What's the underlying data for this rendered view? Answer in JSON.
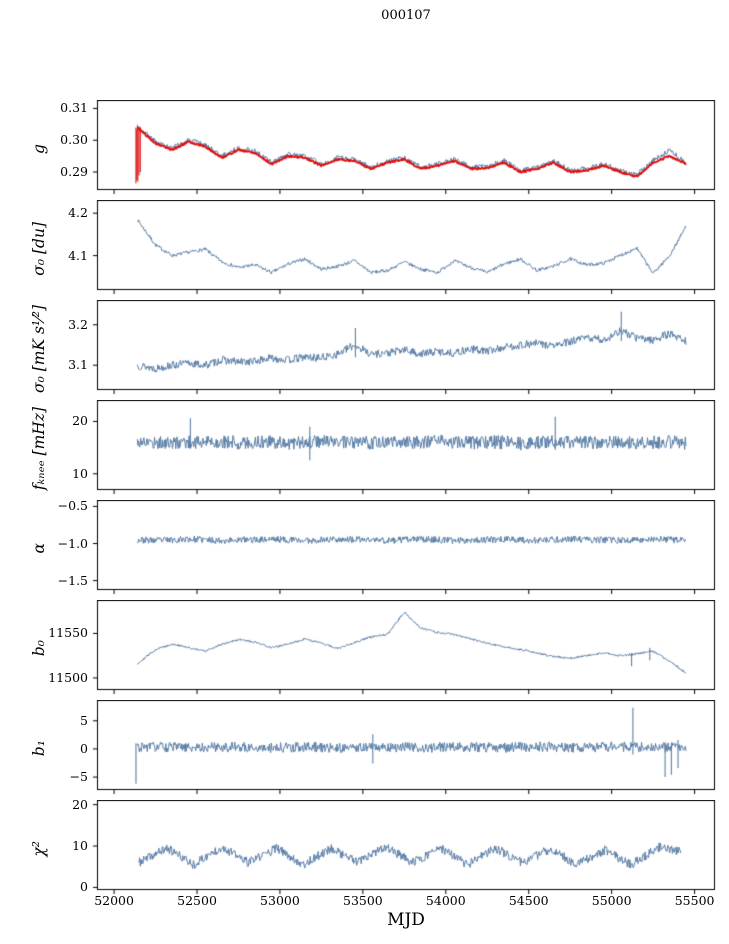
{
  "chart_data": {
    "type": "line",
    "title": "000107",
    "xlabel": "MJD",
    "x_range": [
      51900,
      55620
    ],
    "x_ticks": [
      52000,
      52500,
      53000,
      53500,
      54000,
      54500,
      55000,
      55500
    ],
    "x_tick_labels": [
      "52000",
      "52500",
      "53000",
      "53500",
      "54000",
      "54500",
      "55000",
      "55500"
    ],
    "x_grid": [
      52140,
      52250,
      52350,
      52450,
      52550,
      52650,
      52750,
      52850,
      52950,
      53050,
      53150,
      53250,
      53350,
      53450,
      53550,
      53650,
      53750,
      53850,
      53950,
      54050,
      54150,
      54250,
      54350,
      54450,
      54550,
      54650,
      54750,
      54850,
      54950,
      55050,
      55150,
      55250,
      55350,
      55450
    ],
    "colors": {
      "data_line": "#5b7fa8",
      "fit_line": "#dd1111",
      "axis": "#000000"
    },
    "panels": [
      {
        "id": "g",
        "ylabel": "g",
        "ylim": [
          0.2845,
          0.3125
        ],
        "yticks": [
          0.29,
          0.3,
          0.31
        ],
        "ytick_labels": [
          "0.29",
          "0.30",
          "0.31"
        ],
        "series": [
          {
            "name": "gain-measured",
            "color": "#5b7fa8",
            "lw": 1,
            "noise": 0.0008,
            "seed": 3,
            "y": [
              0.3045,
              0.2995,
              0.2975,
              0.3,
              0.2985,
              0.295,
              0.2975,
              0.2965,
              0.293,
              0.2955,
              0.295,
              0.2925,
              0.2945,
              0.294,
              0.2915,
              0.2935,
              0.2945,
              0.2915,
              0.2925,
              0.294,
              0.2915,
              0.2918,
              0.2935,
              0.2905,
              0.2915,
              0.2935,
              0.2905,
              0.291,
              0.2925,
              0.2905,
              0.289,
              0.2935,
              0.297,
              0.293
            ]
          },
          {
            "name": "gain-model-fit",
            "color": "#dd1111",
            "lw": 1.9,
            "noise": 0.0003,
            "seed": 5,
            "y": [
              0.304,
              0.299,
              0.297,
              0.2995,
              0.298,
              0.2945,
              0.297,
              0.296,
              0.2925,
              0.295,
              0.2945,
              0.292,
              0.294,
              0.2935,
              0.291,
              0.293,
              0.294,
              0.291,
              0.292,
              0.2935,
              0.291,
              0.2913,
              0.293,
              0.29,
              0.291,
              0.293,
              0.29,
              0.2905,
              0.292,
              0.29,
              0.2885,
              0.293,
              0.295,
              0.2925
            ]
          }
        ],
        "spikes": [
          {
            "color": "#dd1111",
            "x": 52132,
            "y0": 0.2865,
            "y1": 0.304
          },
          {
            "color": "#dd1111",
            "x": 52137,
            "y0": 0.2875,
            "y1": 0.3035
          },
          {
            "color": "#dd1111",
            "x": 52143,
            "y0": 0.287,
            "y1": 0.3045
          },
          {
            "color": "#dd1111",
            "x": 52150,
            "y0": 0.289,
            "y1": 0.303
          },
          {
            "color": "#dd1111",
            "x": 52158,
            "y0": 0.29,
            "y1": 0.304
          }
        ]
      },
      {
        "id": "sigma0-du",
        "ylabel": "σ₀ [du]",
        "ylim": [
          4.02,
          4.23
        ],
        "yticks": [
          4.1,
          4.2
        ],
        "ytick_labels": [
          "4.1",
          "4.2"
        ],
        "series": [
          {
            "name": "sigma0-du",
            "color": "#5b7fa8",
            "lw": 1,
            "noise": 0.004,
            "seed": 7,
            "y": [
              4.185,
              4.125,
              4.1,
              4.108,
              4.115,
              4.085,
              4.072,
              4.078,
              4.06,
              4.08,
              4.092,
              4.068,
              4.075,
              4.088,
              4.06,
              4.065,
              4.085,
              4.068,
              4.06,
              4.088,
              4.072,
              4.06,
              4.08,
              4.092,
              4.065,
              4.075,
              4.092,
              4.078,
              4.082,
              4.1,
              4.118,
              4.058,
              4.1,
              4.17
            ]
          }
        ],
        "spikes": []
      },
      {
        "id": "sigma0-mk",
        "ylabel": "σ₀ [mK s¹⁄²]",
        "ylim": [
          3.04,
          3.26
        ],
        "yticks": [
          3.1,
          3.2
        ],
        "ytick_labels": [
          "3.1",
          "3.2"
        ],
        "series": [
          {
            "name": "sigma0-mk",
            "color": "#5b7fa8",
            "lw": 1,
            "noise": 0.01,
            "seed": 13,
            "y": [
              3.1,
              3.092,
              3.1,
              3.105,
              3.1,
              3.113,
              3.108,
              3.11,
              3.118,
              3.113,
              3.12,
              3.118,
              3.128,
              3.15,
              3.128,
              3.13,
              3.138,
              3.128,
              3.134,
              3.13,
              3.14,
              3.135,
              3.144,
              3.15,
              3.154,
              3.148,
              3.158,
              3.168,
              3.162,
              3.185,
              3.168,
              3.163,
              3.178,
              3.16
            ]
          }
        ],
        "spikes": [
          {
            "color": "#5b7fa8",
            "x": 53455,
            "y0": 3.12,
            "y1": 3.192
          },
          {
            "color": "#5b7fa8",
            "x": 55058,
            "y0": 3.16,
            "y1": 3.232
          }
        ]
      },
      {
        "id": "fknee",
        "ylabel": "fₖₙₑₑ [mHz]",
        "ylim": [
          7,
          24
        ],
        "yticks": [
          10,
          20
        ],
        "ytick_labels": [
          "10",
          "20"
        ],
        "series": [
          {
            "name": "fknee",
            "color": "#5b7fa8",
            "lw": 1,
            "noise": 1.3,
            "seed": 17,
            "y": [
              16.2,
              16.0,
              15.8,
              16.1,
              16.0,
              16.2,
              15.9,
              16.0,
              16.1,
              15.9,
              16.0,
              16.2,
              16.0,
              15.8,
              16.0,
              16.1,
              15.9,
              16.0,
              16.2,
              16.0,
              15.9,
              16.1,
              16.0,
              15.8,
              16.0,
              16.2,
              16.0,
              15.9,
              16.1,
              16.0,
              15.8,
              16.0,
              16.1,
              15.9
            ]
          }
        ],
        "spikes": [
          {
            "color": "#5b7fa8",
            "x": 52460,
            "y0": 14.8,
            "y1": 20.6
          },
          {
            "color": "#5b7fa8",
            "x": 53180,
            "y0": 12.6,
            "y1": 19.0
          },
          {
            "color": "#5b7fa8",
            "x": 54660,
            "y0": 14.6,
            "y1": 20.9
          }
        ]
      },
      {
        "id": "alpha",
        "ylabel": "α",
        "ylim": [
          -1.62,
          -0.42
        ],
        "yticks": [
          -1.5,
          -1.0,
          -0.5
        ],
        "ytick_labels": [
          "−1.5",
          "−1.0",
          "−0.5"
        ],
        "series": [
          {
            "name": "alpha",
            "color": "#5b7fa8",
            "lw": 1,
            "noise": 0.045,
            "seed": 23,
            "y": [
              -0.95,
              -0.96,
              -0.95,
              -0.94,
              -0.95,
              -0.96,
              -0.95,
              -0.95,
              -0.94,
              -0.95,
              -0.96,
              -0.95,
              -0.94,
              -0.95,
              -0.95,
              -0.96,
              -0.95,
              -0.94,
              -0.95,
              -0.96,
              -0.95,
              -0.95,
              -0.94,
              -0.95,
              -0.96,
              -0.95,
              -0.94,
              -0.95,
              -0.95,
              -0.96,
              -0.95,
              -0.94,
              -0.95,
              -0.95
            ]
          }
        ],
        "spikes": []
      },
      {
        "id": "b0",
        "ylabel": "b₀",
        "ylim": [
          11487,
          11587
        ],
        "yticks": [
          11500,
          11550
        ],
        "ytick_labels": [
          "11500",
          "11550"
        ],
        "series": [
          {
            "name": "b0",
            "color": "#5b7fa8",
            "lw": 1,
            "noise": 1.2,
            "seed": 29,
            "y": [
              11516,
              11532,
              11538,
              11534,
              11530,
              11538,
              11543,
              11540,
              11534,
              11538,
              11544,
              11539,
              11533,
              11540,
              11546,
              11549,
              11574,
              11556,
              11551,
              11549,
              11544,
              11539,
              11535,
              11532,
              11528,
              11524,
              11522,
              11525,
              11528,
              11525,
              11527,
              11530,
              11519,
              11505
            ]
          }
        ],
        "spikes": [
          {
            "color": "#5b7fa8",
            "x": 55120,
            "y0": 11513,
            "y1": 11528
          },
          {
            "color": "#5b7fa8",
            "x": 55230,
            "y0": 11520,
            "y1": 11534
          }
        ]
      },
      {
        "id": "b1",
        "ylabel": "b₁",
        "ylim": [
          -7.2,
          8.6
        ],
        "yticks": [
          -5,
          0,
          5
        ],
        "ytick_labels": [
          "−5",
          "0",
          "5"
        ],
        "series": [
          {
            "name": "b1",
            "color": "#5b7fa8",
            "lw": 1,
            "noise": 0.9,
            "seed": 31,
            "y": [
              0.3,
              0.4,
              0.3,
              0.2,
              0.3,
              0.4,
              0.3,
              0.3,
              0.2,
              0.3,
              0.4,
              0.3,
              0.2,
              0.3,
              0.3,
              0.4,
              0.3,
              0.2,
              0.3,
              0.4,
              0.3,
              0.3,
              0.2,
              0.3,
              0.4,
              0.3,
              0.2,
              0.3,
              0.3,
              0.4,
              0.3,
              0.2,
              0.3,
              0.3
            ]
          }
        ],
        "spikes": [
          {
            "color": "#5b7fa8",
            "x": 52132,
            "y0": -6.2,
            "y1": 1.0
          },
          {
            "color": "#5b7fa8",
            "x": 53560,
            "y0": -2.6,
            "y1": 2.6
          },
          {
            "color": "#5b7fa8",
            "x": 55128,
            "y0": -1.0,
            "y1": 7.3
          },
          {
            "color": "#5b7fa8",
            "x": 55322,
            "y0": -5.0,
            "y1": 1.2
          },
          {
            "color": "#5b7fa8",
            "x": 55360,
            "y0": -4.6,
            "y1": 1.0
          },
          {
            "color": "#5b7fa8",
            "x": 55400,
            "y0": -3.4,
            "y1": 1.6
          }
        ]
      },
      {
        "id": "chi2",
        "ylabel": "χ²",
        "ylim": [
          -0.5,
          21
        ],
        "yticks": [
          0,
          10,
          20
        ],
        "ytick_labels": [
          "0",
          "10",
          "20"
        ],
        "series": [
          {
            "name": "chi2",
            "color": "#5b7fa8",
            "lw": 1,
            "noise": 1.1,
            "seed": 37,
            "x": [
              52150,
              52320,
              52480,
              52650,
              52810,
              52980,
              53140,
              53310,
              53470,
              53640,
              53800,
              53970,
              54130,
              54300,
              54460,
              54630,
              54790,
              54960,
              55120,
              55290,
              55420
            ],
            "y": [
              6.0,
              9.5,
              5.5,
              9.8,
              6.0,
              9.5,
              5.5,
              9.5,
              6.0,
              9.8,
              6.0,
              9.5,
              5.5,
              9.5,
              6.0,
              9.3,
              5.5,
              9.0,
              5.5,
              9.8,
              8.5
            ]
          }
        ],
        "spikes": []
      }
    ]
  }
}
